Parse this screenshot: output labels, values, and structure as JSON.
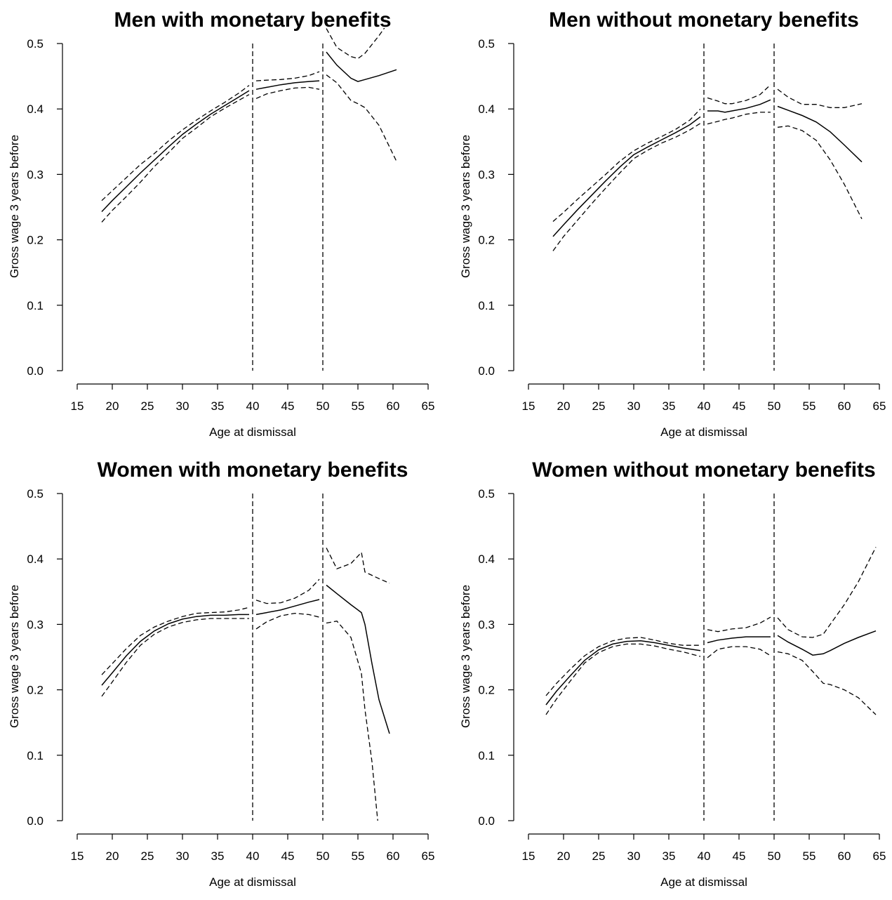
{
  "chart_data": [
    {
      "type": "line",
      "title": "Men with monetary benefits",
      "xlabel": "Age at dismissal",
      "ylabel": "Gross wage 3 years before",
      "xlim": [
        15,
        65
      ],
      "ylim": [
        0,
        0.5
      ],
      "xticks": [
        "15",
        "20",
        "25",
        "30",
        "35",
        "40",
        "45",
        "50",
        "55",
        "60",
        "65"
      ],
      "yticks": [
        "0.0",
        "0.1",
        "0.2",
        "0.3",
        "0.4",
        "0.5"
      ],
      "cutoffs": [
        40,
        50
      ],
      "segments": [
        {
          "x": [
            18.5,
            20,
            22,
            24,
            26,
            28,
            30,
            32,
            34,
            36,
            38,
            39.5
          ],
          "estimate": [
            0.243,
            0.26,
            0.281,
            0.302,
            0.322,
            0.342,
            0.361,
            0.377,
            0.392,
            0.405,
            0.418,
            0.428
          ],
          "lower": [
            0.227,
            0.245,
            0.266,
            0.288,
            0.312,
            0.333,
            0.355,
            0.371,
            0.388,
            0.401,
            0.413,
            0.422
          ],
          "upper": [
            0.26,
            0.275,
            0.295,
            0.315,
            0.332,
            0.351,
            0.368,
            0.383,
            0.397,
            0.41,
            0.424,
            0.436
          ]
        },
        {
          "x": [
            40.5,
            42,
            44,
            46,
            48,
            49.5
          ],
          "estimate": [
            0.43,
            0.433,
            0.437,
            0.44,
            0.442,
            0.443
          ],
          "lower": [
            0.416,
            0.423,
            0.428,
            0.432,
            0.433,
            0.43
          ],
          "upper": [
            0.443,
            0.444,
            0.445,
            0.447,
            0.451,
            0.457
          ]
        },
        {
          "x": [
            50.5,
            52,
            54,
            55,
            56,
            58,
            60.5
          ],
          "estimate": [
            0.487,
            0.467,
            0.447,
            0.442,
            0.445,
            0.451,
            0.46
          ],
          "lower": [
            0.452,
            0.44,
            0.413,
            0.408,
            0.402,
            0.375,
            0.32
          ],
          "upper": [
            0.523,
            0.494,
            0.48,
            0.477,
            0.485,
            0.512,
            0.55
          ]
        }
      ]
    },
    {
      "type": "line",
      "title": "Men without monetary benefits",
      "xlabel": "Age at dismissal",
      "ylabel": "Gross wage 3 years before",
      "xlim": [
        15,
        65
      ],
      "ylim": [
        0,
        0.5
      ],
      "xticks": [
        "15",
        "20",
        "25",
        "30",
        "35",
        "40",
        "45",
        "50",
        "55",
        "60",
        "65"
      ],
      "yticks": [
        "0.0",
        "0.1",
        "0.2",
        "0.3",
        "0.4",
        "0.5"
      ],
      "cutoffs": [
        40,
        50
      ],
      "segments": [
        {
          "x": [
            18.5,
            20,
            22,
            24,
            26,
            28,
            30,
            32,
            34,
            36,
            38,
            39.5
          ],
          "estimate": [
            0.205,
            0.223,
            0.246,
            0.268,
            0.29,
            0.311,
            0.33,
            0.342,
            0.353,
            0.364,
            0.376,
            0.388
          ],
          "lower": [
            0.183,
            0.205,
            0.23,
            0.255,
            0.279,
            0.302,
            0.324,
            0.337,
            0.348,
            0.357,
            0.368,
            0.378
          ],
          "upper": [
            0.228,
            0.242,
            0.262,
            0.281,
            0.3,
            0.32,
            0.336,
            0.348,
            0.358,
            0.369,
            0.383,
            0.4
          ]
        },
        {
          "x": [
            40.5,
            42,
            43,
            44,
            46,
            48,
            49.5
          ],
          "estimate": [
            0.397,
            0.397,
            0.395,
            0.397,
            0.401,
            0.407,
            0.414
          ],
          "lower": [
            0.377,
            0.381,
            0.384,
            0.386,
            0.392,
            0.395,
            0.395
          ],
          "upper": [
            0.417,
            0.412,
            0.408,
            0.408,
            0.413,
            0.422,
            0.437
          ]
        },
        {
          "x": [
            50.5,
            52,
            54,
            56,
            58,
            60,
            62.5
          ],
          "estimate": [
            0.404,
            0.398,
            0.39,
            0.38,
            0.365,
            0.345,
            0.319
          ],
          "lower": [
            0.372,
            0.374,
            0.367,
            0.352,
            0.322,
            0.285,
            0.232
          ],
          "upper": [
            0.43,
            0.418,
            0.407,
            0.407,
            0.402,
            0.402,
            0.408
          ]
        }
      ]
    },
    {
      "type": "line",
      "title": "Women with monetary benefits",
      "xlabel": "Age at dismissal",
      "ylabel": "Gross wage 3 years before",
      "xlim": [
        15,
        65
      ],
      "ylim": [
        0,
        0.5
      ],
      "xticks": [
        "15",
        "20",
        "25",
        "30",
        "35",
        "40",
        "45",
        "50",
        "55",
        "60",
        "65"
      ],
      "yticks": [
        "0.0",
        "0.1",
        "0.2",
        "0.3",
        "0.4",
        "0.5"
      ],
      "cutoffs": [
        40,
        50
      ],
      "segments": [
        {
          "x": [
            18.5,
            20,
            22,
            24,
            26,
            28,
            30,
            32,
            34,
            36,
            38,
            39.5
          ],
          "estimate": [
            0.207,
            0.226,
            0.252,
            0.274,
            0.29,
            0.301,
            0.308,
            0.312,
            0.314,
            0.314,
            0.315,
            0.315
          ],
          "lower": [
            0.19,
            0.212,
            0.242,
            0.268,
            0.285,
            0.296,
            0.303,
            0.307,
            0.309,
            0.309,
            0.309,
            0.309
          ],
          "upper": [
            0.223,
            0.24,
            0.263,
            0.283,
            0.296,
            0.305,
            0.312,
            0.317,
            0.318,
            0.319,
            0.322,
            0.326
          ]
        },
        {
          "x": [
            40.5,
            42,
            44,
            46,
            48,
            49.5
          ],
          "estimate": [
            0.315,
            0.318,
            0.322,
            0.328,
            0.334,
            0.338
          ],
          "lower": [
            0.293,
            0.304,
            0.313,
            0.317,
            0.315,
            0.311
          ],
          "upper": [
            0.337,
            0.332,
            0.333,
            0.34,
            0.352,
            0.369
          ]
        },
        {
          "x": [
            50.5,
            52,
            54,
            55.5,
            56,
            57,
            58,
            59.5
          ],
          "estimate": [
            0.36,
            0.347,
            0.33,
            0.318,
            0.3,
            0.24,
            0.185,
            0.133
          ],
          "lower": [
            0.302,
            0.305,
            0.28,
            0.225,
            0.17,
            0.09,
            -0.02,
            -0.05
          ],
          "upper": [
            0.417,
            0.385,
            0.393,
            0.41,
            0.38,
            0.375,
            0.37,
            0.363
          ]
        }
      ]
    },
    {
      "type": "line",
      "title": "Women without monetary benefits",
      "xlabel": "Age at dismissal",
      "ylabel": "Gross wage 3 years before",
      "xlim": [
        15,
        65
      ],
      "ylim": [
        0,
        0.5
      ],
      "xticks": [
        "15",
        "20",
        "25",
        "30",
        "35",
        "40",
        "45",
        "50",
        "55",
        "60",
        "65"
      ],
      "yticks": [
        "0.0",
        "0.1",
        "0.2",
        "0.3",
        "0.4",
        "0.5"
      ],
      "cutoffs": [
        40,
        50
      ],
      "segments": [
        {
          "x": [
            17.5,
            19,
            21,
            23,
            25,
            27,
            29,
            31,
            33,
            35,
            37,
            39.5
          ],
          "estimate": [
            0.177,
            0.198,
            0.222,
            0.245,
            0.261,
            0.27,
            0.274,
            0.275,
            0.272,
            0.268,
            0.264,
            0.26
          ],
          "lower": [
            0.162,
            0.186,
            0.214,
            0.241,
            0.257,
            0.266,
            0.27,
            0.27,
            0.267,
            0.262,
            0.258,
            0.251
          ],
          "upper": [
            0.191,
            0.21,
            0.232,
            0.252,
            0.266,
            0.275,
            0.279,
            0.28,
            0.276,
            0.271,
            0.268,
            0.268
          ]
        },
        {
          "x": [
            40.5,
            42,
            44,
            46,
            48,
            49.5
          ],
          "estimate": [
            0.272,
            0.276,
            0.279,
            0.281,
            0.281,
            0.281
          ],
          "lower": [
            0.249,
            0.262,
            0.266,
            0.266,
            0.262,
            0.252
          ],
          "upper": [
            0.292,
            0.289,
            0.293,
            0.295,
            0.302,
            0.311
          ]
        },
        {
          "x": [
            50.5,
            52,
            54,
            55.5,
            57,
            58,
            60,
            62,
            64.5
          ],
          "estimate": [
            0.283,
            0.273,
            0.262,
            0.253,
            0.255,
            0.26,
            0.271,
            0.28,
            0.29
          ],
          "lower": [
            0.258,
            0.255,
            0.245,
            0.228,
            0.21,
            0.208,
            0.2,
            0.188,
            0.162
          ],
          "upper": [
            0.31,
            0.292,
            0.281,
            0.28,
            0.285,
            0.3,
            0.33,
            0.365,
            0.418
          ]
        }
      ]
    }
  ]
}
